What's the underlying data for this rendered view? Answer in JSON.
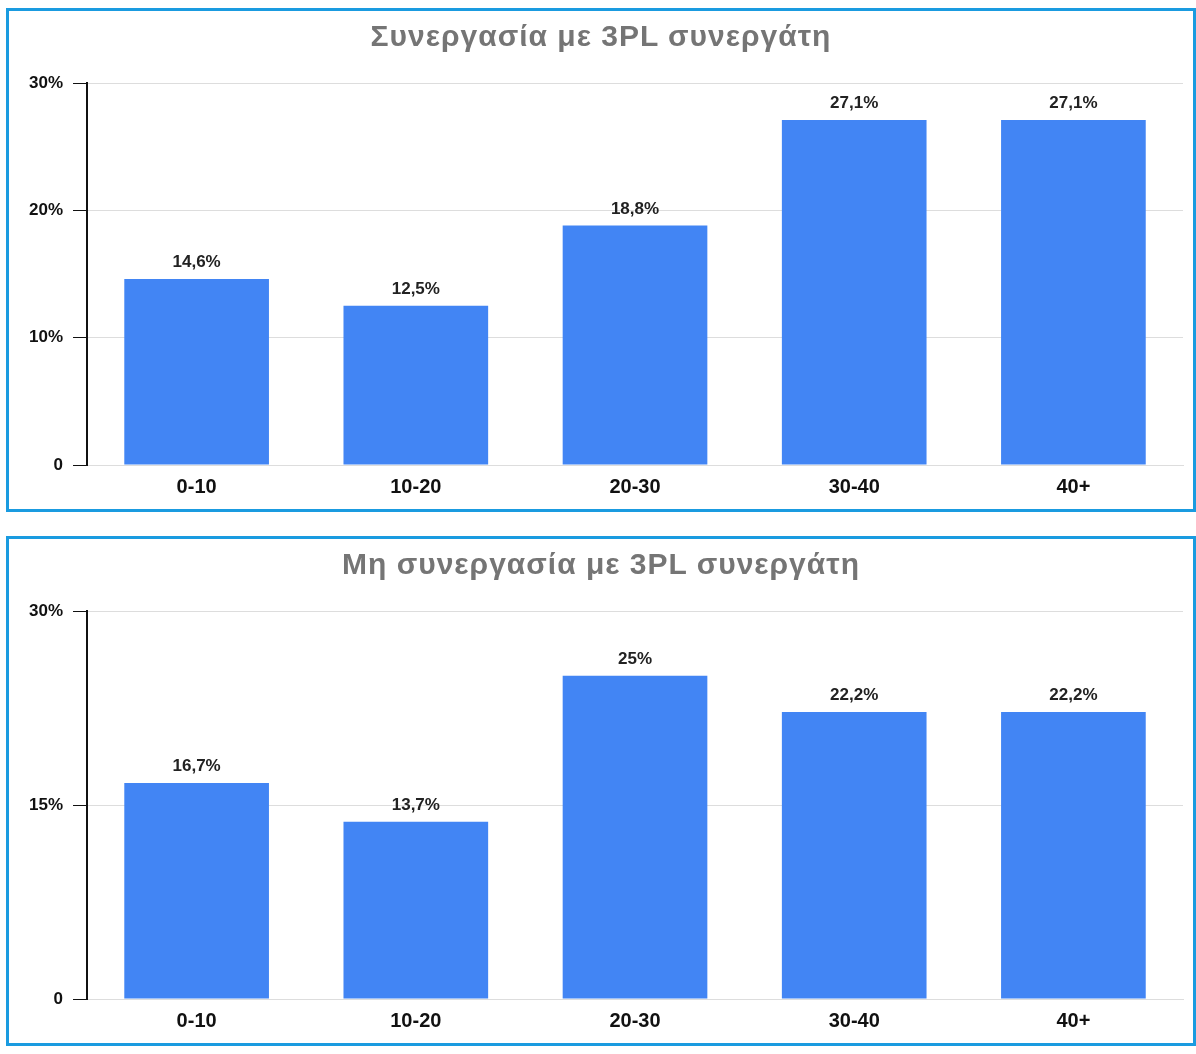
{
  "chart_data": [
    {
      "type": "bar",
      "title": "Συνεργασία με 3PL συνεργάτη",
      "categories": [
        "0-10",
        "10-20",
        "20-30",
        "30-40",
        "40+"
      ],
      "values": [
        14.6,
        12.5,
        18.8,
        27.1,
        27.1
      ],
      "value_labels": [
        "14,6%",
        "12,5%",
        "18,8%",
        "27,1%",
        "27,1%"
      ],
      "color": "#4285f4",
      "ylim": [
        0,
        30
      ],
      "yticks": [
        0,
        {
          "value": 10,
          "label": "10%"
        },
        {
          "value": 20,
          "label": "20%"
        },
        {
          "value": 30,
          "label": "30%"
        }
      ],
      "grid": "y"
    },
    {
      "type": "bar",
      "title": "Μη συνεργασία με 3PL συνεργάτη",
      "categories": [
        "0-10",
        "10-20",
        "20-30",
        "30-40",
        "40+"
      ],
      "values": [
        16.7,
        13.7,
        25,
        22.2,
        22.2
      ],
      "value_labels": [
        "16,7%",
        "13,7%",
        "25%",
        "22,2%",
        "22,2%"
      ],
      "color": "#4285f4",
      "ylim": [
        0,
        30
      ],
      "yticks": [
        0,
        {
          "value": 15,
          "label": "15%"
        },
        {
          "value": 30,
          "label": "30%"
        }
      ],
      "grid": "y"
    }
  ]
}
